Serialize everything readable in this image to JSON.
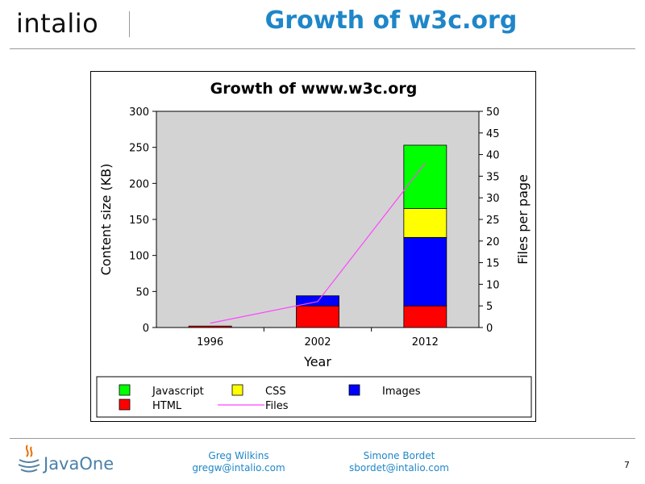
{
  "header": {
    "logo": "intalio",
    "title": "Growth of w3c.org"
  },
  "chart_data": {
    "type": "bar",
    "title": "Growth of www.w3c.org",
    "xlabel": "Year",
    "ylabel": "Content size (KB)",
    "y2label": "Files per page",
    "categories": [
      "1996",
      "2002",
      "2012"
    ],
    "ylim": [
      0,
      300
    ],
    "y_ticks": [
      0,
      50,
      100,
      150,
      200,
      250,
      300
    ],
    "y2lim": [
      0,
      50
    ],
    "y2_ticks": [
      0,
      5,
      10,
      15,
      20,
      25,
      30,
      35,
      40,
      45,
      50
    ],
    "stacked": true,
    "grid": false,
    "background": "#d3d3d3",
    "legend_position": "bottom",
    "series": [
      {
        "name": "HTML",
        "values": [
          2,
          30,
          30
        ],
        "color": "#ff0000"
      },
      {
        "name": "Images",
        "values": [
          0,
          14,
          95
        ],
        "color": "#0000ff"
      },
      {
        "name": "CSS",
        "values": [
          0,
          0,
          40
        ],
        "color": "#ffff00"
      },
      {
        "name": "Javascript",
        "values": [
          0,
          0,
          88
        ],
        "color": "#00ff00"
      }
    ],
    "line_series": {
      "name": "Files",
      "axis": "right",
      "values": [
        1,
        6,
        38
      ],
      "color": "#ff44ff"
    },
    "legend_order": [
      "Javascript",
      "CSS",
      "Images",
      "HTML",
      "Files"
    ]
  },
  "footer": {
    "brand": "JavaOne",
    "author1_name": "Greg Wilkins",
    "author1_email": "gregw@intalio.com",
    "author2_name": "Simone Bordet",
    "author2_email": "sbordet@intalio.com",
    "page_number": "7"
  }
}
